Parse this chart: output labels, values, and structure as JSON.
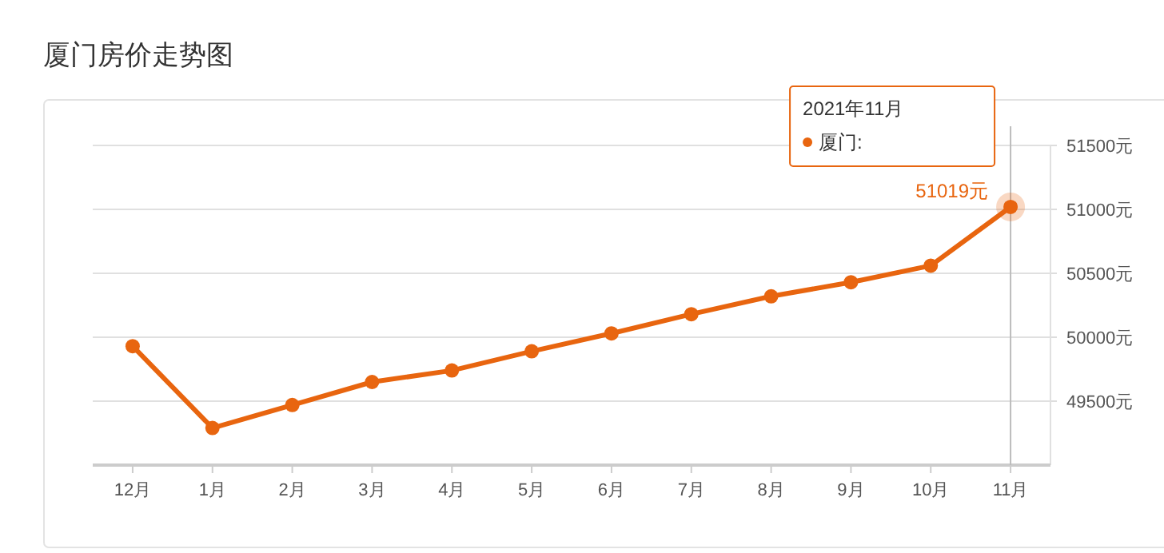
{
  "chart_data": {
    "type": "line",
    "title": "厦门房价走势图",
    "categories": [
      "12月",
      "1月",
      "2月",
      "3月",
      "4月",
      "5月",
      "6月",
      "7月",
      "8月",
      "9月",
      "10月",
      "11月"
    ],
    "series": [
      {
        "name": "厦门:",
        "color": "#e8650f",
        "values": [
          49930,
          49290,
          49470,
          49650,
          49740,
          49890,
          50030,
          50180,
          50320,
          50430,
          50560,
          51019
        ],
        "value_labels": [
          null,
          null,
          null,
          null,
          null,
          null,
          null,
          null,
          null,
          null,
          null,
          "51019元"
        ]
      }
    ],
    "ylim": [
      49000,
      51500
    ],
    "yticks": [
      {
        "value": 49500,
        "label": "49500元"
      },
      {
        "value": 50000,
        "label": "50000元"
      },
      {
        "value": 50500,
        "label": "50500元"
      },
      {
        "value": 51000,
        "label": "51000元"
      },
      {
        "value": 51500,
        "label": "51500元"
      }
    ],
    "annotations": [
      "2021年11月"
    ],
    "ref_lines": [
      {
        "axis": "x",
        "value": "11月",
        "color": "#bbbbbb"
      }
    ],
    "grid": "y",
    "legend": "top right",
    "marker": "circle",
    "line_style": "solid"
  }
}
